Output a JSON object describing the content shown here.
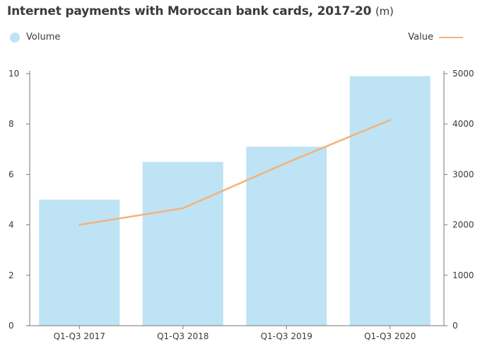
{
  "chart_data": {
    "type": "bar",
    "title": "Internet payments with Moroccan bank cards, 2017-20",
    "title_unit": "(m)",
    "categories": [
      "Q1-Q3 2017",
      "Q1-Q3 2018",
      "Q1-Q3 2019",
      "Q1-Q3 2020"
    ],
    "series": [
      {
        "name": "Volume",
        "type": "bar",
        "axis": "left",
        "color": "#bde3f4",
        "values": [
          5.0,
          6.5,
          7.1,
          9.9
        ]
      },
      {
        "name": "Value",
        "type": "line",
        "axis": "right",
        "color": "#f4b27a",
        "values": [
          2000,
          2330,
          3230,
          4080
        ]
      }
    ],
    "y_left": {
      "ylim": [
        0,
        10
      ],
      "ticks": [
        "0",
        "2",
        "4",
        "6",
        "8",
        "10"
      ]
    },
    "y_right": {
      "ylim": [
        0,
        5000
      ],
      "ticks": [
        "0",
        "1000",
        "2000",
        "3000",
        "4000",
        "5000"
      ]
    },
    "legend": {
      "left": "Volume",
      "right": "Value",
      "placement": "top"
    },
    "grid": false
  }
}
